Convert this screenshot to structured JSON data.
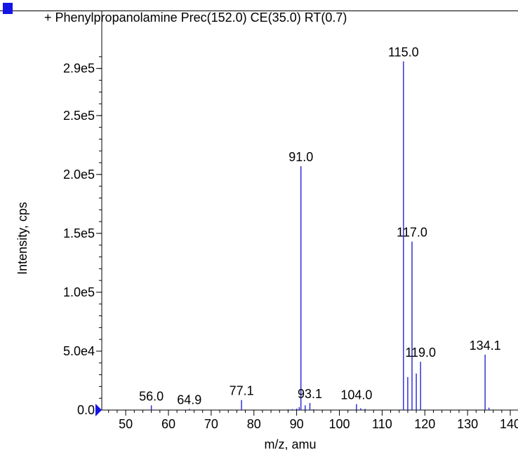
{
  "header": {
    "title": "+ Phenylpropanolamine Prec(152.0) CE(35.0) RT(0.7)"
  },
  "chart_data": {
    "type": "bar",
    "title": "+ Phenylpropanolamine Prec(152.0) CE(35.0) RT(0.7)",
    "xlabel": "m/z, amu",
    "ylabel": "Intensity, cps",
    "xlim": [
      44.4,
      141.8
    ],
    "ylim": [
      0,
      300500
    ],
    "x_ticks": [
      50,
      60,
      70,
      80,
      90,
      100,
      110,
      120,
      130,
      140
    ],
    "y_ticks": [
      {
        "value": 0,
        "label": "0.0"
      },
      {
        "value": 50000,
        "label": "5.0e4"
      },
      {
        "value": 100000,
        "label": "1.0e5"
      },
      {
        "value": 150000,
        "label": "1.5e5"
      },
      {
        "value": 200000,
        "label": "2.0e5"
      },
      {
        "value": 250000,
        "label": "2.5e5"
      },
      {
        "value": 290000,
        "label": "2.9e5"
      }
    ],
    "peaks": [
      {
        "mz": 56.0,
        "intensity": 4000,
        "label": "56.0"
      },
      {
        "mz": 64.9,
        "intensity": 1000,
        "label": "64.9"
      },
      {
        "mz": 77.1,
        "intensity": 8500,
        "label": "77.1"
      },
      {
        "mz": 88.0,
        "intensity": 600
      },
      {
        "mz": 89.0,
        "intensity": 800
      },
      {
        "mz": 90.0,
        "intensity": 1200
      },
      {
        "mz": 90.6,
        "intensity": 2500
      },
      {
        "mz": 91.0,
        "intensity": 207000,
        "label": "91.0"
      },
      {
        "mz": 92.0,
        "intensity": 4000
      },
      {
        "mz": 93.1,
        "intensity": 6000,
        "label": "93.1"
      },
      {
        "mz": 94.0,
        "intensity": 700
      },
      {
        "mz": 104.0,
        "intensity": 5000,
        "label": "104.0"
      },
      {
        "mz": 105.0,
        "intensity": 1500
      },
      {
        "mz": 106.0,
        "intensity": 1000
      },
      {
        "mz": 115.0,
        "intensity": 296000,
        "label": "115.0"
      },
      {
        "mz": 116.0,
        "intensity": 28000
      },
      {
        "mz": 117.0,
        "intensity": 143000,
        "label": "117.0"
      },
      {
        "mz": 118.0,
        "intensity": 31000
      },
      {
        "mz": 119.0,
        "intensity": 41000,
        "label": "119.0"
      },
      {
        "mz": 134.1,
        "intensity": 47000,
        "label": "134.1"
      },
      {
        "mz": 135.0,
        "intensity": 2000
      }
    ],
    "series_color": "#2323d8",
    "legend_color": "#1414e6",
    "grid": false
  }
}
